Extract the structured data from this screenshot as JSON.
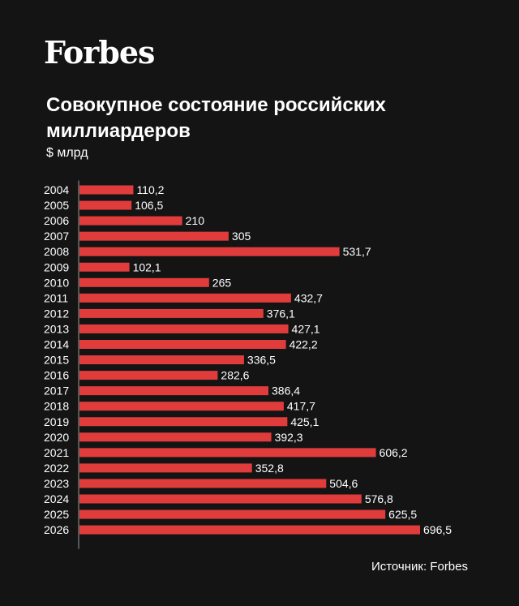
{
  "brand": {
    "logo_text": "Forbes"
  },
  "chart_data": {
    "type": "bar",
    "orientation": "horizontal",
    "title": "Совокупное состояние российских миллиардеров",
    "unit_label": "$ млрд",
    "categories": [
      "2004",
      "2005",
      "2006",
      "2007",
      "2008",
      "2009",
      "2010",
      "2011",
      "2012",
      "2013",
      "2014",
      "2015",
      "2016",
      "2017",
      "2018",
      "2019",
      "2020",
      "2021",
      "2022",
      "2023",
      "2024",
      "2025",
      "2026"
    ],
    "values": [
      110.2,
      106.5,
      210,
      305,
      531.7,
      102.1,
      265,
      432.7,
      376.1,
      427.1,
      422.2,
      336.5,
      282.6,
      386.4,
      417.7,
      425.1,
      392.3,
      606.2,
      352.8,
      504.6,
      576.8,
      625.5,
      696.5
    ],
    "value_labels": [
      "110,2",
      "106,5",
      "210",
      "305",
      "531,7",
      "102,1",
      "265",
      "432,7",
      "376,1",
      "427,1",
      "422,2",
      "336,5",
      "282,6",
      "386,4",
      "417,7",
      "425,1",
      "392,3",
      "606,2",
      "352,8",
      "504,6",
      "576,8",
      "625,5",
      "696,5"
    ],
    "xlim": [
      0,
      696.5
    ],
    "grid": false,
    "legend": "none",
    "bar_color": "#e03c3c",
    "background_color": "#141414",
    "text_color": "#ffffff"
  },
  "footer": {
    "source": "Источник: Forbes"
  }
}
